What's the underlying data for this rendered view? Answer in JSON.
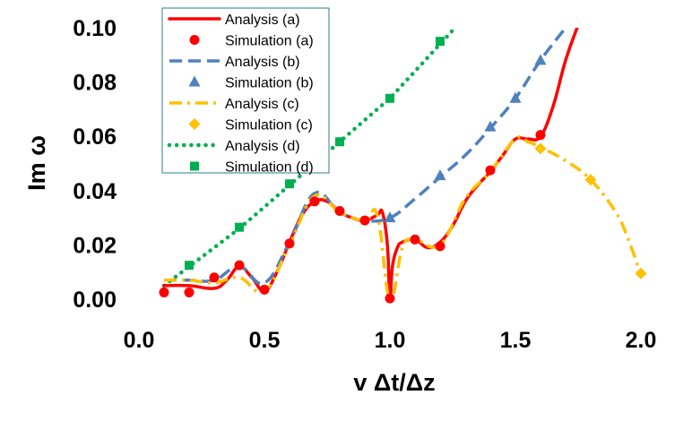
{
  "chart_data": {
    "type": "line",
    "title": "",
    "xlabel": "v Δt/Δz",
    "ylabel": "Im ω",
    "xlim": [
      0.0,
      2.0
    ],
    "ylim": [
      0.0,
      0.1
    ],
    "xticks": [
      "0.0",
      "0.5",
      "1.0",
      "1.5",
      "2.0"
    ],
    "yticks": [
      "0.00",
      "0.02",
      "0.04",
      "0.06",
      "0.08",
      "0.10"
    ],
    "grid": false,
    "legend_position": "top-left",
    "series": [
      {
        "name": "Analysis (a)",
        "kind": "line",
        "style": "solid",
        "color": "#ff0000",
        "x": [
          0.1,
          0.2,
          0.3,
          0.35,
          0.4,
          0.45,
          0.5,
          0.55,
          0.6,
          0.65,
          0.7,
          0.75,
          0.8,
          0.85,
          0.9,
          0.95,
          0.97,
          0.99,
          1.0,
          1.01,
          1.03,
          1.05,
          1.1,
          1.15,
          1.2,
          1.25,
          1.3,
          1.35,
          1.4,
          1.45,
          1.5,
          1.55,
          1.6,
          1.65,
          1.7,
          1.75
        ],
        "y": [
          0.005,
          0.005,
          0.004,
          0.007,
          0.012,
          0.008,
          0.003,
          0.01,
          0.021,
          0.031,
          0.036,
          0.036,
          0.032,
          0.03,
          0.029,
          0.031,
          0.032,
          0.02,
          0.0,
          0.012,
          0.019,
          0.021,
          0.022,
          0.019,
          0.021,
          0.027,
          0.036,
          0.042,
          0.047,
          0.053,
          0.059,
          0.059,
          0.06,
          0.071,
          0.088,
          0.101
        ]
      },
      {
        "name": "Simulation (a)",
        "kind": "marker",
        "marker": "circle",
        "color": "#ff0000",
        "x": [
          0.1,
          0.2,
          0.3,
          0.4,
          0.5,
          0.6,
          0.7,
          0.8,
          0.9,
          1.0,
          1.1,
          1.2,
          1.4,
          1.6
        ],
        "y": [
          0.0025,
          0.0025,
          0.008,
          0.0125,
          0.0035,
          0.0205,
          0.036,
          0.0325,
          0.029,
          0.0003,
          0.022,
          0.0195,
          0.0475,
          0.0605
        ]
      },
      {
        "name": "Analysis (b)",
        "kind": "line",
        "style": "dashed",
        "color": "#4f81bd",
        "x": [
          0.1,
          0.2,
          0.3,
          0.4,
          0.5,
          0.6,
          0.7,
          0.8,
          0.9,
          1.0,
          1.1,
          1.2,
          1.3,
          1.4,
          1.5,
          1.6,
          1.7
        ],
        "y": [
          0.007,
          0.007,
          0.007,
          0.012,
          0.006,
          0.021,
          0.039,
          0.032,
          0.029,
          0.03,
          0.037,
          0.045,
          0.053,
          0.063,
          0.074,
          0.088,
          0.1
        ]
      },
      {
        "name": "Simulation (b)",
        "kind": "marker",
        "marker": "triangle",
        "color": "#4f81bd",
        "x": [
          1.0,
          1.2,
          1.4,
          1.5,
          1.6
        ],
        "y": [
          0.03,
          0.0455,
          0.0635,
          0.074,
          0.088
        ]
      },
      {
        "name": "Analysis (c)",
        "kind": "line",
        "style": "dashdot",
        "color": "#ffc000",
        "x": [
          0.1,
          0.2,
          0.3,
          0.4,
          0.5,
          0.6,
          0.7,
          0.8,
          0.9,
          0.95,
          1.0,
          1.05,
          1.1,
          1.2,
          1.3,
          1.4,
          1.5,
          1.55,
          1.6,
          1.7,
          1.8,
          1.9,
          1.95,
          2.0
        ],
        "y": [
          0.007,
          0.007,
          0.006,
          0.008,
          0.003,
          0.02,
          0.038,
          0.032,
          0.029,
          0.031,
          0.0,
          0.019,
          0.022,
          0.02,
          0.037,
          0.047,
          0.059,
          0.058,
          0.056,
          0.051,
          0.044,
          0.032,
          0.022,
          0.009
        ]
      },
      {
        "name": "Simulation (c)",
        "kind": "marker",
        "marker": "diamond",
        "color": "#ffc000",
        "x": [
          1.6,
          1.8,
          2.0
        ],
        "y": [
          0.0555,
          0.044,
          0.0095
        ]
      },
      {
        "name": "Analysis (d)",
        "kind": "line",
        "style": "dotted",
        "color": "#00b050",
        "x": [
          0.1,
          0.2,
          0.3,
          0.4,
          0.5,
          0.6,
          0.7,
          0.8,
          0.9,
          1.0,
          1.1,
          1.2,
          1.25
        ],
        "y": [
          0.005,
          0.012,
          0.019,
          0.026,
          0.034,
          0.042,
          0.05,
          0.058,
          0.066,
          0.074,
          0.084,
          0.094,
          0.099
        ]
      },
      {
        "name": "Simulation (d)",
        "kind": "marker",
        "marker": "square",
        "color": "#00b050",
        "x": [
          0.2,
          0.4,
          0.6,
          0.8,
          1.0,
          1.2
        ],
        "y": [
          0.0125,
          0.0265,
          0.0425,
          0.058,
          0.074,
          0.095
        ]
      }
    ]
  }
}
